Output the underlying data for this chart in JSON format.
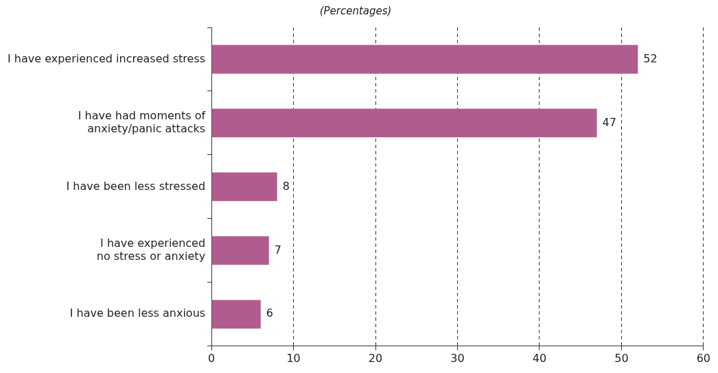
{
  "chart_data": {
    "type": "bar",
    "orientation": "horizontal",
    "subtitle": "(Percentages)",
    "categories": [
      "I have experienced increased stress",
      "I have had moments of\nanxiety/panic attacks",
      "I have been less stressed",
      "I have experienced\nno stress or anxiety",
      "I have been less anxious"
    ],
    "values": [
      52,
      47,
      8,
      7,
      6
    ],
    "color": "#b05c8f",
    "xlim": [
      0,
      60
    ],
    "xticks": [
      0,
      10,
      20,
      30,
      40,
      50,
      60
    ],
    "grid": "x",
    "data_labels": true,
    "legend": false
  }
}
